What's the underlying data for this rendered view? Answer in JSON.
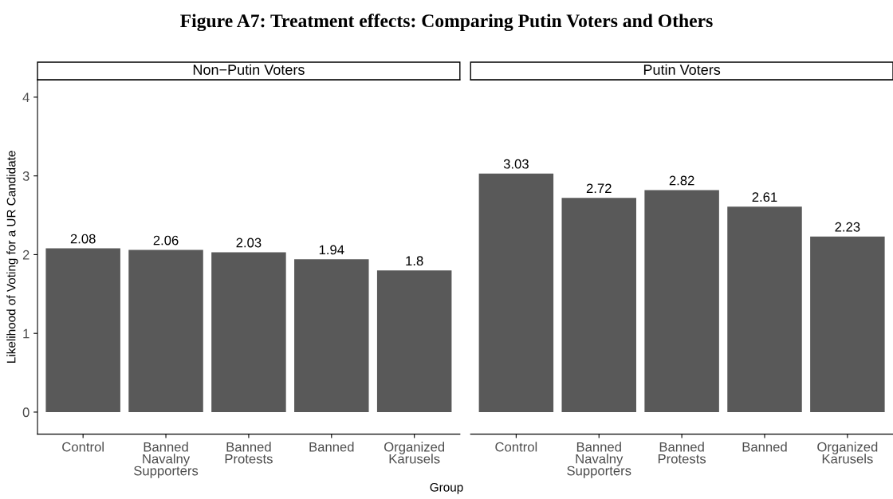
{
  "chart_data": [
    {
      "type": "bar",
      "title": "Figure A7: Treatment effects: Comparing Putin Voters and Others",
      "subtitle": "Non−Putin Voters",
      "xlabel": "Group",
      "ylabel": "Likelihood of Voting for a UR Candidate",
      "categories": [
        "Control",
        "Banned\nNavalny\nSupporters",
        "Banned\nProtests",
        "Banned",
        "Organized\nKarusels"
      ],
      "values": [
        2.08,
        2.06,
        2.03,
        1.94,
        1.8
      ],
      "color": "#595959",
      "data_labels": true,
      "ylim": [
        -0.28,
        4.22
      ],
      "yticks": [
        0,
        1,
        2,
        3,
        4
      ],
      "grid": false
    },
    {
      "type": "bar",
      "subtitle": "Putin Voters",
      "categories": [
        "Control",
        "Banned\nNavalny\nSupporters",
        "Banned\nProtests",
        "Banned",
        "Organized\nKarusels"
      ],
      "values": [
        3.03,
        2.72,
        2.82,
        2.61,
        2.23
      ],
      "color": "#595959",
      "data_labels": true,
      "ylim": [
        -0.28,
        4.22
      ],
      "yticks": [
        0,
        1,
        2,
        3,
        4
      ],
      "tick_labels": "x",
      "grid": false
    }
  ]
}
